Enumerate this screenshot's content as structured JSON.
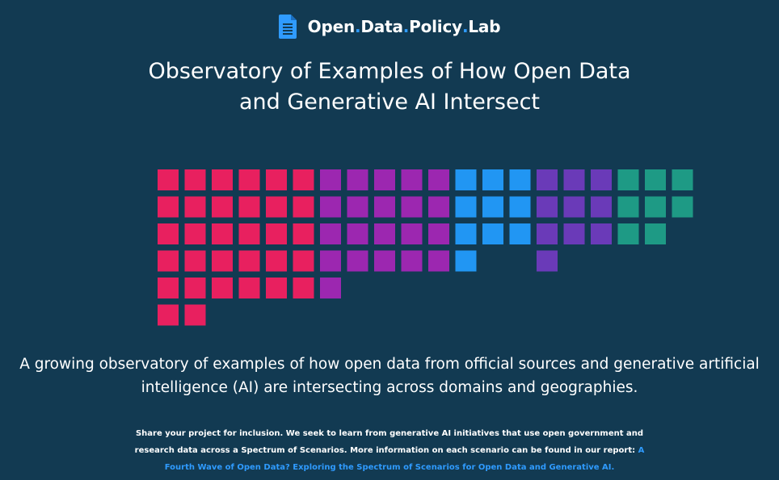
{
  "header": {
    "logo_icon": "document-icon",
    "logo_words": [
      "Open",
      "Data",
      "Policy",
      "Lab"
    ],
    "logo_separator": "."
  },
  "title": {
    "line1": "Observatory of Examples of How Open Data",
    "line2": "and Generative AI Intersect"
  },
  "colors": {
    "background": "#123a52",
    "accent": "#2f9bff",
    "pink": "#e8205f",
    "purple": "#9c27b0",
    "blue": "#2196f3",
    "indigo": "#6a3ab8",
    "teal": "#1e9a85"
  },
  "waffle": {
    "groups": [
      {
        "color": "pink",
        "column_heights": [
          6,
          6,
          5,
          5,
          5,
          5
        ]
      },
      {
        "color": "purple",
        "column_heights": [
          5,
          4,
          4,
          4,
          4
        ]
      },
      {
        "color": "blue",
        "column_heights": [
          4,
          3,
          3
        ]
      },
      {
        "color": "indigo",
        "column_heights": [
          4,
          3,
          3
        ]
      },
      {
        "color": "teal",
        "column_heights": [
          3,
          3,
          2
        ]
      }
    ]
  },
  "subtitle": {
    "line1": "A growing observatory of examples of how open data from official sources and generative artificial",
    "line2": "intelligence (AI) are intersecting across domains and geographies."
  },
  "note": {
    "line1": "Share your project for inclusion. We seek to learn from generative AI initiatives that use open government and",
    "line2_text": "research data across a Spectrum of Scenarios. More information on each scenario can be found in our report: ",
    "line2_link": "A",
    "line3_link": "Fourth Wave of Open Data? Exploring the Spectrum of Scenarios for Open Data and Generative AI."
  }
}
